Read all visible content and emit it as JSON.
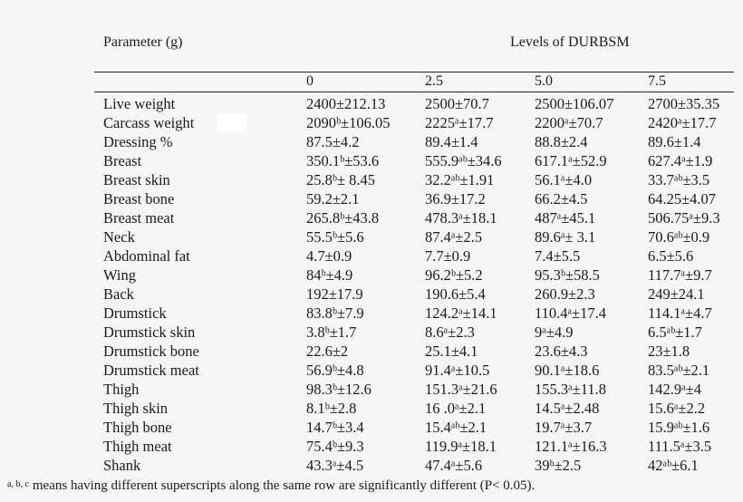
{
  "header": {
    "parameter_label": "Parameter (g)",
    "levels_label": "Levels of DURBSM"
  },
  "levels": [
    "0",
    "2.5",
    "5.0",
    "7.5"
  ],
  "rows": [
    [
      "Live weight",
      "2400±212.13",
      "2500±70.7",
      "2500±106.07",
      "2700±35.35"
    ],
    [
      "Carcass weight",
      "2090ᵇ±106.05",
      "2225ᵃ±17.7",
      "2200ᵃ±70.7",
      "2420ᵃ±17.7"
    ],
    [
      "Dressing %",
      "87.5±4.2",
      "89.4±1.4",
      "88.8±2.4",
      "89.6±1.4"
    ],
    [
      "Breast",
      "350.1ᵇ±53.6",
      "555.9ᵃᵇ±34.6",
      "617.1ᵃ±52.9",
      "627.4ᵃ±1.9"
    ],
    [
      "Breast skin",
      "25.8ᵇ± 8.45",
      "32.2ᵃᵇ±1.91",
      "56.1ᵃ±4.0",
      "33.7ᵃᵇ±3.5"
    ],
    [
      "Breast bone",
      "59.2±2.1",
      "36.9±17.2",
      "66.2±4.5",
      "64.25±4.07"
    ],
    [
      "Breast meat",
      "265.8ᵇ±43.8",
      "478.3ᵃ±18.1",
      "487ᵃ±45.1",
      "506.75ᵃ±9.3"
    ],
    [
      "Neck",
      "55.5ᵇ±5.6",
      "87.4ᵃ±2.5",
      "89.6ᵃ± 3.1",
      "70.6ᵃᵇ±0.9"
    ],
    [
      "Abdominal fat",
      "4.7±0.9",
      "7.7±0.9",
      "7.4±5.5",
      "6.5±5.6"
    ],
    [
      "Wing",
      "84ᵇ±4.9",
      "96.2ᵇ±5.2",
      "95.3ᵇ±58.5",
      "117.7ᵃ±9.7"
    ],
    [
      "Back",
      "192±17.9",
      "190.6±5.4",
      "260.9±2.3",
      "249±24.1"
    ],
    [
      "Drumstick",
      "83.8ᵇ±7.9",
      "124.2ᵃ±14.1",
      "110.4ᵃ±17.4",
      "114.1ᵃ±4.7"
    ],
    [
      "Drumstick skin",
      "3.8ᵇ±1.7",
      "8.6ᵃ±2.3",
      "9ᵃ±4.9",
      "6.5ᵃᵇ±1.7"
    ],
    [
      "Drumstick bone",
      "22.6±2",
      "25.1±4.1",
      "23.6±4.3",
      "23±1.8"
    ],
    [
      "Drumstick meat",
      "56.9ᵇ±4.8",
      "91.4ᵃ±10.5",
      "90.1ᵃ±18.6",
      "83.5ᵃᵇ±2.1"
    ],
    [
      "Thigh",
      "98.3ᵇ±12.6",
      "151.3ᵃ±21.6",
      "155.3ᵃ±11.8",
      "142.9ᵃ±4"
    ],
    [
      "Thigh skin",
      "8.1ᵇ±2.8",
      "16 .0ᵃ±2.1",
      "14.5ᵃ±2.48",
      "15.6ᵃ±2.2"
    ],
    [
      "Thigh bone",
      "14.7ᵇ±3.4",
      "15.4ᵃᵇ±2.1",
      "19.7ᵃ±3.7",
      "15.9ᵃᵇ±1.6"
    ],
    [
      "Thigh meat",
      "75.4ᵇ±9.3",
      "119.9ᵃ±18.1",
      "121.1ᵃ±16.3",
      "111.5ᵃ±3.5"
    ],
    [
      "Shank",
      "43.3ᵃ±4.5",
      "47.4ᵃ±5.6",
      "39ᵇ±2.5",
      "42ᵃᵇ±6.1"
    ]
  ],
  "footnote": {
    "marks": "a, b, c",
    "text": "means having different superscripts along the same row are significantly different (P< 0.05)."
  }
}
